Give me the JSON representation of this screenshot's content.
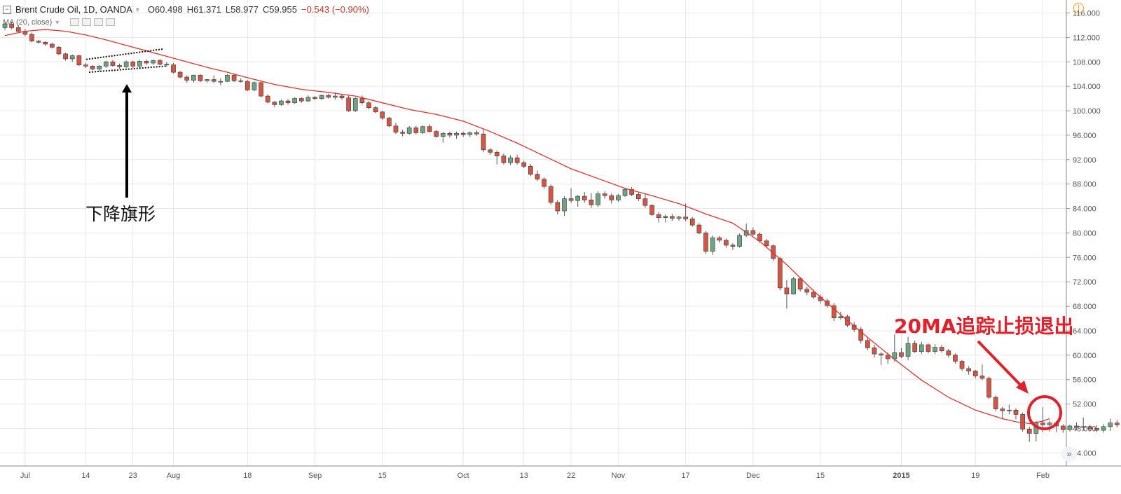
{
  "legend": {
    "symbol": "Brent Crude Oil, 1D, OANDA",
    "open": "O60.498",
    "high": "H61.371",
    "low": "L58.977",
    "close": "C59.955",
    "change": "−0.543 (−0.90%)",
    "indicator": "MA (20, close)"
  },
  "annotations": {
    "flag_label": "下降旗形",
    "exit_label": "20MA追踪止损退出",
    "scroll_icon": "»",
    "info_icon": "!"
  },
  "colors": {
    "up": "#6ba583",
    "down": "#d75442",
    "wick": "#555555",
    "ma": "#e0332f",
    "grid": "#e8e8e8",
    "annotation_red": "#e0202a",
    "annotation_black": "#000000"
  },
  "chart_data": {
    "type": "candlestick",
    "title": "Brent Crude Oil, 1D, OANDA",
    "ylim": [
      43,
      117
    ],
    "y_ticks": [
      44,
      48,
      52,
      56,
      60,
      64,
      68,
      72,
      76,
      80,
      84,
      88,
      92,
      96,
      100,
      104,
      108,
      112,
      116
    ],
    "y_tick_labels": [
      "44.000",
      "48.000",
      "52.000",
      "56.000",
      "60.000",
      "64.000",
      "68.000",
      "72.000",
      "76.000",
      "80.000",
      "84.000",
      "88.000",
      "92.000",
      "96.000",
      "100.000",
      "104.000",
      "108.000",
      "112.000",
      "116.000"
    ],
    "x_tick_labels": [
      {
        "label": "Jul",
        "bar": 3
      },
      {
        "label": "14",
        "bar": 12
      },
      {
        "label": "23",
        "bar": 19
      },
      {
        "label": "Aug",
        "bar": 25
      },
      {
        "label": "18",
        "bar": 36
      },
      {
        "label": "Sep",
        "bar": 46
      },
      {
        "label": "15",
        "bar": 56
      },
      {
        "label": "Oct",
        "bar": 68
      },
      {
        "label": "13",
        "bar": 77
      },
      {
        "label": "22",
        "bar": 84
      },
      {
        "label": "Nov",
        "bar": 91
      },
      {
        "label": "17",
        "bar": 101
      },
      {
        "label": "Dec",
        "bar": 111
      },
      {
        "label": "15",
        "bar": 121
      },
      {
        "label": "2015",
        "bar": 133
      },
      {
        "label": "19",
        "bar": 144
      },
      {
        "label": "Feb",
        "bar": 154
      }
    ],
    "candles": [
      [
        113.6,
        114.5,
        113.2,
        114.2
      ],
      [
        114.2,
        114.6,
        113.3,
        113.6
      ],
      [
        113.6,
        114.0,
        112.8,
        113.0
      ],
      [
        113.0,
        113.4,
        112.2,
        112.5
      ],
      [
        112.5,
        112.8,
        111.2,
        111.4
      ],
      [
        111.4,
        111.6,
        111.0,
        111.2
      ],
      [
        111.2,
        111.4,
        110.6,
        110.9
      ],
      [
        110.9,
        111.1,
        110.2,
        110.4
      ],
      [
        110.4,
        110.6,
        109.1,
        109.3
      ],
      [
        109.3,
        109.5,
        108.2,
        108.5
      ],
      [
        108.5,
        109.2,
        108.0,
        109.0
      ],
      [
        109.0,
        109.2,
        107.3,
        107.5
      ],
      [
        107.5,
        107.8,
        107.0,
        107.3
      ],
      [
        107.3,
        107.5,
        106.6,
        106.8
      ],
      [
        106.8,
        107.5,
        106.5,
        107.3
      ],
      [
        107.3,
        108.2,
        107.0,
        108.0
      ],
      [
        108.0,
        108.3,
        107.2,
        107.4
      ],
      [
        107.4,
        107.7,
        106.9,
        107.2
      ],
      [
        107.2,
        108.2,
        107.0,
        108.0
      ],
      [
        108.0,
        108.2,
        107.0,
        107.3
      ],
      [
        107.3,
        108.3,
        107.0,
        108.1
      ],
      [
        108.1,
        108.4,
        107.5,
        107.8
      ],
      [
        107.8,
        108.4,
        107.5,
        108.2
      ],
      [
        108.2,
        108.5,
        107.4,
        107.6
      ],
      [
        107.6,
        108.0,
        107.2,
        107.5
      ],
      [
        107.5,
        107.8,
        106.1,
        106.3
      ],
      [
        106.3,
        106.5,
        105.3,
        105.5
      ],
      [
        105.5,
        105.8,
        104.6,
        105.0
      ],
      [
        105.0,
        105.9,
        104.6,
        105.8
      ],
      [
        105.8,
        106.0,
        104.7,
        104.9
      ],
      [
        104.9,
        105.2,
        104.6,
        105.1
      ],
      [
        105.1,
        105.8,
        104.5,
        104.8
      ],
      [
        104.8,
        105.3,
        104.2,
        104.8
      ],
      [
        104.8,
        106.0,
        104.7,
        105.8
      ],
      [
        105.8,
        106.1,
        104.7,
        104.9
      ],
      [
        104.9,
        105.3,
        104.6,
        104.8
      ],
      [
        104.8,
        105.0,
        103.2,
        103.4
      ],
      [
        103.4,
        104.8,
        103.2,
        104.6
      ],
      [
        104.6,
        104.8,
        102.2,
        102.4
      ],
      [
        102.4,
        102.7,
        101.2,
        101.4
      ],
      [
        101.4,
        101.6,
        100.6,
        101.0
      ],
      [
        101.0,
        101.8,
        100.8,
        101.6
      ],
      [
        101.6,
        101.9,
        101.0,
        101.3
      ],
      [
        101.3,
        102.2,
        101.1,
        102.0
      ],
      [
        102.0,
        102.2,
        101.3,
        101.6
      ],
      [
        101.6,
        102.5,
        101.4,
        102.2
      ],
      [
        102.2,
        102.4,
        101.7,
        102.0
      ],
      [
        102.0,
        102.7,
        101.7,
        102.5
      ],
      [
        102.5,
        102.8,
        102.0,
        102.2
      ],
      [
        102.2,
        103.0,
        101.8,
        102.4
      ],
      [
        102.4,
        102.7,
        101.8,
        102.1
      ],
      [
        102.1,
        102.5,
        99.8,
        100.0
      ],
      [
        100.0,
        102.2,
        99.8,
        102.0
      ],
      [
        102.0,
        102.5,
        101.0,
        101.3
      ],
      [
        101.3,
        101.6,
        100.2,
        100.5
      ],
      [
        100.5,
        100.8,
        99.6,
        99.8
      ],
      [
        99.8,
        100.0,
        98.5,
        98.8
      ],
      [
        98.8,
        99.0,
        97.3,
        97.5
      ],
      [
        97.5,
        98.0,
        96.2,
        96.5
      ],
      [
        96.5,
        96.9,
        95.8,
        96.3
      ],
      [
        96.3,
        97.5,
        96.1,
        97.2
      ],
      [
        97.2,
        97.5,
        96.1,
        96.4
      ],
      [
        96.4,
        97.6,
        96.2,
        97.4
      ],
      [
        97.4,
        97.8,
        96.4,
        96.6
      ],
      [
        96.6,
        96.9,
        95.6,
        95.8
      ],
      [
        95.8,
        96.5,
        94.8,
        96.3
      ],
      [
        96.3,
        96.6,
        95.6,
        96.0
      ],
      [
        96.0,
        96.6,
        95.4,
        96.3
      ],
      [
        96.3,
        96.6,
        95.7,
        96.1
      ],
      [
        96.1,
        96.6,
        95.7,
        96.4
      ],
      [
        96.4,
        96.8,
        95.9,
        96.2
      ],
      [
        96.2,
        97.1,
        93.2,
        93.6
      ],
      [
        93.6,
        93.9,
        92.8,
        93.2
      ],
      [
        93.2,
        93.5,
        91.2,
        92.6
      ],
      [
        92.6,
        93.0,
        91.2,
        91.5
      ],
      [
        91.5,
        92.7,
        91.1,
        92.3
      ],
      [
        92.3,
        92.8,
        91.2,
        91.5
      ],
      [
        91.5,
        91.8,
        90.6,
        90.9
      ],
      [
        90.9,
        91.3,
        89.3,
        89.6
      ],
      [
        89.6,
        90.2,
        88.5,
        88.8
      ],
      [
        88.8,
        89.1,
        87.2,
        87.6
      ],
      [
        87.6,
        87.9,
        84.6,
        85.0
      ],
      [
        85.0,
        85.4,
        83.0,
        83.6
      ],
      [
        83.6,
        86.0,
        82.8,
        85.6
      ],
      [
        85.6,
        87.3,
        84.9,
        85.3
      ],
      [
        85.3,
        86.2,
        84.3,
        86.0
      ],
      [
        86.0,
        86.7,
        85.0,
        85.4
      ],
      [
        85.4,
        86.5,
        84.1,
        84.6
      ],
      [
        84.6,
        86.8,
        84.2,
        86.4
      ],
      [
        86.4,
        86.8,
        85.6,
        86.1
      ],
      [
        86.1,
        86.5,
        84.8,
        85.4
      ],
      [
        85.4,
        86.4,
        85.1,
        86.1
      ],
      [
        86.1,
        87.4,
        85.9,
        87.1
      ],
      [
        87.1,
        87.5,
        86.0,
        86.3
      ],
      [
        86.3,
        86.6,
        85.2,
        85.6
      ],
      [
        85.6,
        86.3,
        84.1,
        84.5
      ],
      [
        84.5,
        84.7,
        82.8,
        83.0
      ],
      [
        83.0,
        83.4,
        81.7,
        82.5
      ],
      [
        82.5,
        83.0,
        81.7,
        82.7
      ],
      [
        82.7,
        83.1,
        82.0,
        82.4
      ],
      [
        82.4,
        82.8,
        82.0,
        82.6
      ],
      [
        82.6,
        84.8,
        81.9,
        82.3
      ],
      [
        82.3,
        82.6,
        81.0,
        81.3
      ],
      [
        81.3,
        81.6,
        79.8,
        80.0
      ],
      [
        80.0,
        80.3,
        76.6,
        77.0
      ],
      [
        77.0,
        79.6,
        76.4,
        79.2
      ],
      [
        79.2,
        79.5,
        78.4,
        78.8
      ],
      [
        78.8,
        79.1,
        77.6,
        78.0
      ],
      [
        78.0,
        78.3,
        77.2,
        77.8
      ],
      [
        77.8,
        79.9,
        77.6,
        79.6
      ],
      [
        79.6,
        81.5,
        79.3,
        80.4
      ],
      [
        80.4,
        80.9,
        79.5,
        79.8
      ],
      [
        79.8,
        80.1,
        78.4,
        78.7
      ],
      [
        78.7,
        79.0,
        77.6,
        77.9
      ],
      [
        77.9,
        78.1,
        75.4,
        75.8
      ],
      [
        75.8,
        76.1,
        70.6,
        71.0
      ],
      [
        71.0,
        72.3,
        67.6,
        70.0
      ],
      [
        70.0,
        72.8,
        69.9,
        72.5
      ],
      [
        72.5,
        72.8,
        70.4,
        70.8
      ],
      [
        70.8,
        71.2,
        69.8,
        70.3
      ],
      [
        70.3,
        70.7,
        69.2,
        69.5
      ],
      [
        69.5,
        69.9,
        68.4,
        68.9
      ],
      [
        68.9,
        69.2,
        67.7,
        68.1
      ],
      [
        68.1,
        68.5,
        65.6,
        66.1
      ],
      [
        66.1,
        67.1,
        65.8,
        66.3
      ],
      [
        66.3,
        66.6,
        64.6,
        64.9
      ],
      [
        64.9,
        65.4,
        63.8,
        64.2
      ],
      [
        64.2,
        64.6,
        61.9,
        62.4
      ],
      [
        62.4,
        62.8,
        60.8,
        61.2
      ],
      [
        61.2,
        61.7,
        59.6,
        60.2
      ],
      [
        60.2,
        60.5,
        58.4,
        60.0
      ],
      [
        60.0,
        60.4,
        58.6,
        59.4
      ],
      [
        59.4,
        63.4,
        58.9,
        60.4
      ],
      [
        60.4,
        61.2,
        59.5,
        59.8
      ],
      [
        59.8,
        63.0,
        59.2,
        61.9
      ],
      [
        61.9,
        62.4,
        60.3,
        60.6
      ],
      [
        60.6,
        62.2,
        60.2,
        61.7
      ],
      [
        61.7,
        61.9,
        60.3,
        60.6
      ],
      [
        60.6,
        61.8,
        60.2,
        61.3
      ],
      [
        61.3,
        61.7,
        60.4,
        60.7
      ],
      [
        60.7,
        61.0,
        59.6,
        60.0
      ],
      [
        60.0,
        60.3,
        58.6,
        59.0
      ],
      [
        59.0,
        59.2,
        57.4,
        57.8
      ],
      [
        57.8,
        58.2,
        56.8,
        57.4
      ],
      [
        57.4,
        57.6,
        56.2,
        56.6
      ],
      [
        56.6,
        58.5,
        55.9,
        56.2
      ],
      [
        56.2,
        56.5,
        52.8,
        53.1
      ],
      [
        53.1,
        53.4,
        50.8,
        51.2
      ],
      [
        51.2,
        51.5,
        49.5,
        50.9
      ],
      [
        50.9,
        51.9,
        50.3,
        51.0
      ],
      [
        51.0,
        51.3,
        49.5,
        50.3
      ],
      [
        50.3,
        50.6,
        47.5,
        47.9
      ],
      [
        47.9,
        48.3,
        45.8,
        47.2
      ],
      [
        47.2,
        49.2,
        45.9,
        48.9
      ],
      [
        48.9,
        51.5,
        47.4,
        48.6
      ],
      [
        48.6,
        49.3,
        47.5,
        48.9
      ],
      [
        48.9,
        49.2,
        47.4,
        48.4
      ],
      [
        48.4,
        48.7,
        47.3,
        47.8
      ],
      [
        47.8,
        48.6,
        47.5,
        48.4
      ],
      [
        48.4,
        49.0,
        47.7,
        48.2
      ],
      [
        48.2,
        49.8,
        47.6,
        48.3
      ],
      [
        48.3,
        48.6,
        47.6,
        48.0
      ],
      [
        48.0,
        48.5,
        47.4,
        47.7
      ],
      [
        47.7,
        48.7,
        47.3,
        48.3
      ],
      [
        48.3,
        49.6,
        47.6,
        48.9
      ],
      [
        48.9,
        49.4,
        48.2,
        48.6
      ],
      [
        48.6,
        52.9,
        48.2,
        52.3
      ],
      [
        52.3,
        52.6,
        51.4,
        53.3
      ],
      [
        53.3,
        56.0,
        52.5,
        55.0
      ],
      [
        55.0,
        58.8,
        54.4,
        56.7
      ],
      [
        56.7,
        57.7,
        53.6,
        54.4
      ]
    ],
    "ma20": [
      [
        0,
        112.3
      ],
      [
        3,
        113.0
      ],
      [
        6,
        113.3
      ],
      [
        9,
        113.0
      ],
      [
        12,
        112.4
      ],
      [
        15,
        111.6
      ],
      [
        18,
        110.7
      ],
      [
        21,
        109.8
      ],
      [
        24,
        108.9
      ],
      [
        27,
        108.0
      ],
      [
        30,
        107.1
      ],
      [
        33,
        106.3
      ],
      [
        36,
        105.4
      ],
      [
        40,
        104.3
      ],
      [
        44,
        103.5
      ],
      [
        48,
        103.0
      ],
      [
        52,
        102.4
      ],
      [
        56,
        101.3
      ],
      [
        60,
        100.2
      ],
      [
        64,
        99.4
      ],
      [
        68,
        98.3
      ],
      [
        72,
        96.6
      ],
      [
        76,
        94.7
      ],
      [
        80,
        92.6
      ],
      [
        84,
        90.5
      ],
      [
        88,
        88.9
      ],
      [
        92,
        87.3
      ],
      [
        96,
        86.1
      ],
      [
        100,
        84.8
      ],
      [
        104,
        83.1
      ],
      [
        108,
        81.6
      ],
      [
        112,
        78.6
      ],
      [
        116,
        74.8
      ],
      [
        120,
        70.5
      ],
      [
        124,
        66.6
      ],
      [
        128,
        62.9
      ],
      [
        132,
        59.3
      ],
      [
        136,
        55.9
      ],
      [
        140,
        53.1
      ],
      [
        144,
        51.0
      ],
      [
        148,
        49.6
      ],
      [
        150,
        49.1
      ],
      [
        152,
        48.8
      ],
      [
        154,
        49.2
      ],
      [
        155,
        49.6
      ]
    ]
  }
}
